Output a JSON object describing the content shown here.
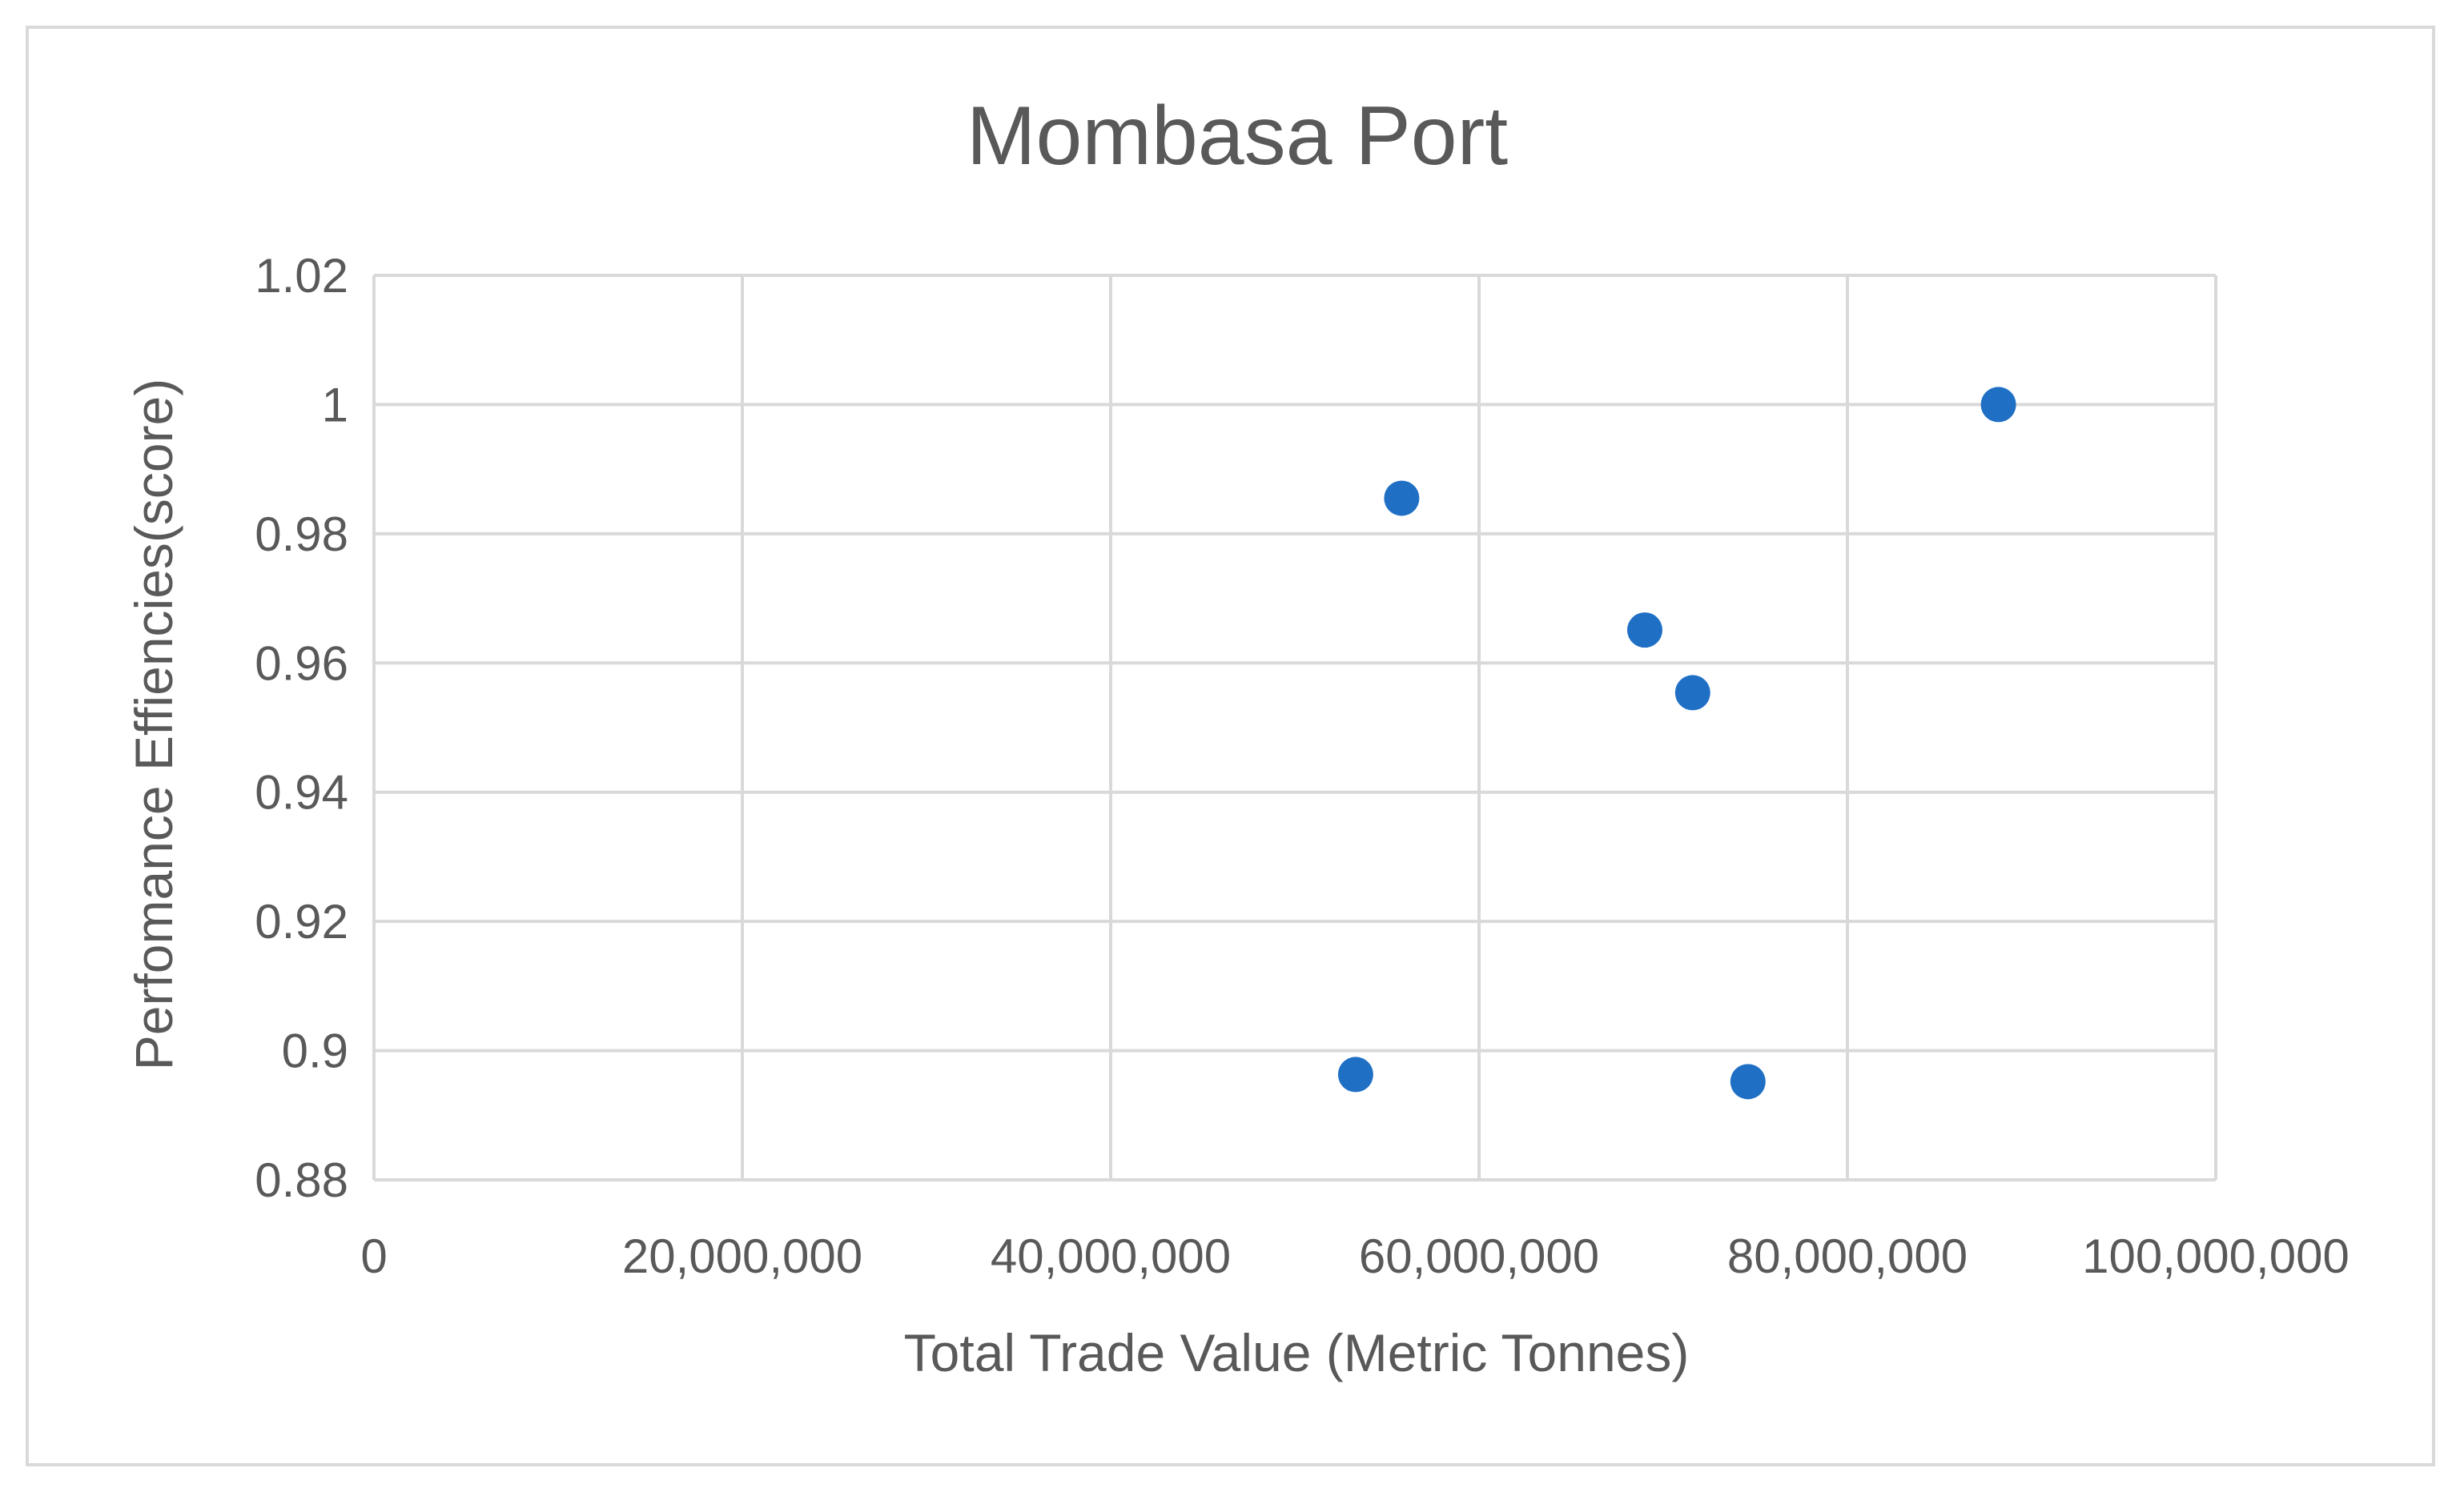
{
  "chart_data": {
    "type": "scatter",
    "title": "Mombasa Port",
    "xlabel": "Total Trade Value (Metric Tonnes)",
    "ylabel": "Perfomance Effiencies(score)",
    "xlim": [
      0,
      100000000
    ],
    "ylim": [
      0.88,
      1.02
    ],
    "x_ticks": [
      0,
      20000000,
      40000000,
      60000000,
      80000000,
      100000000
    ],
    "x_tick_labels": [
      "0",
      "20,000,000",
      "40,000,000",
      "60,000,000",
      "80,000,000",
      "100,000,000"
    ],
    "y_ticks": [
      0.88,
      0.9,
      0.92,
      0.94,
      0.96,
      0.98,
      1.0,
      1.02
    ],
    "y_tick_labels": [
      "0.88",
      "0.9",
      "0.92",
      "0.94",
      "0.96",
      "0.98",
      "1",
      "1.02"
    ],
    "grid": true,
    "legend": "none",
    "marker_color": "#1f6fc5",
    "grid_color": "#d9d9d9",
    "series": [
      {
        "points": [
          {
            "x": 53300000,
            "y": 0.8963
          },
          {
            "x": 55800000,
            "y": 0.9855
          },
          {
            "x": 69000000,
            "y": 0.9651
          },
          {
            "x": 71600000,
            "y": 0.9554
          },
          {
            "x": 74600000,
            "y": 0.8952
          },
          {
            "x": 88200000,
            "y": 1.0
          }
        ]
      }
    ]
  }
}
